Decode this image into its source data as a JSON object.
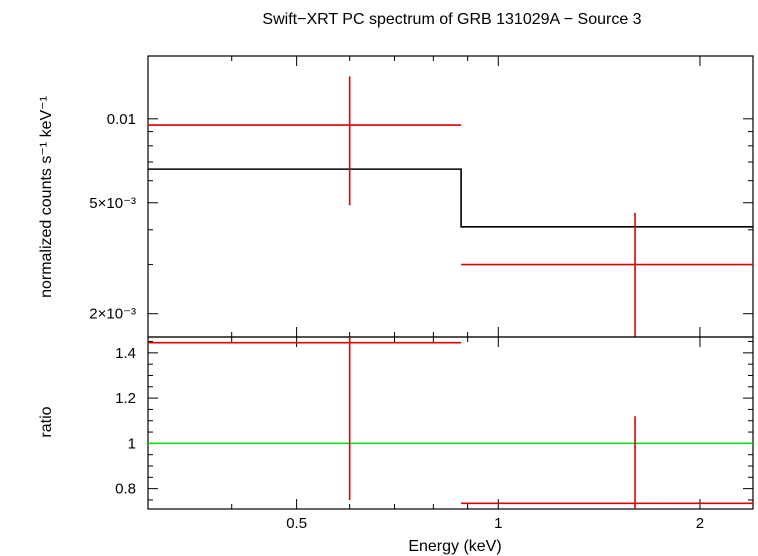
{
  "chart_data": {
    "type": "scatter",
    "title": "Swift−XRT PC spectrum of GRB 131029A − Source 3",
    "xlabel": "Energy (keV)",
    "x_scale": "log",
    "xlim": [
      0.3,
      2.4
    ],
    "x_ticks": [
      {
        "value": 0.5,
        "label": "0.5"
      },
      {
        "value": 1,
        "label": "1"
      },
      {
        "value": 2,
        "label": "2"
      }
    ],
    "panels": [
      {
        "name": "spectrum",
        "ylabel": "normalized counts s⁻¹ keV⁻¹",
        "y_scale": "log",
        "ylim": [
          0.00165,
          0.0168
        ],
        "y_ticks": [
          {
            "value": 0.01,
            "label": "0.01"
          },
          {
            "value": 0.005,
            "label": "5×10⁻³"
          },
          {
            "value": 0.002,
            "label": "2×10⁻³"
          }
        ],
        "data": [
          {
            "x": 0.6,
            "xlo": 0.3,
            "xhi": 0.88,
            "y": 0.0095,
            "ylo": 0.0049,
            "yhi": 0.0142
          },
          {
            "x": 1.6,
            "xlo": 0.88,
            "xhi": 2.4,
            "y": 0.003,
            "ylo": 0.00165,
            "yhi": 0.0046
          }
        ],
        "model": [
          {
            "xlo": 0.3,
            "xhi": 0.88,
            "y": 0.0066
          },
          {
            "xlo": 0.88,
            "xhi": 2.4,
            "y": 0.0041
          }
        ]
      },
      {
        "name": "ratio",
        "ylabel": "ratio",
        "y_scale": "linear",
        "ylim": [
          0.71,
          1.47
        ],
        "y_ticks": [
          {
            "value": 0.8,
            "label": "0.8"
          },
          {
            "value": 1,
            "label": "1"
          },
          {
            "value": 1.2,
            "label": "1.2"
          },
          {
            "value": 1.4,
            "label": "1.4"
          }
        ],
        "reference": 1,
        "data": [
          {
            "x": 0.6,
            "xlo": 0.3,
            "xhi": 0.88,
            "y": 1.445,
            "ylo": 0.75,
            "yhi": 1.47
          },
          {
            "x": 1.6,
            "xlo": 0.88,
            "xhi": 2.4,
            "y": 0.735,
            "ylo": 0.71,
            "yhi": 1.12
          }
        ]
      }
    ],
    "colors": {
      "data": "#e00000",
      "model": "#000000",
      "reference": "#00dd00",
      "axes": "#000000"
    }
  }
}
